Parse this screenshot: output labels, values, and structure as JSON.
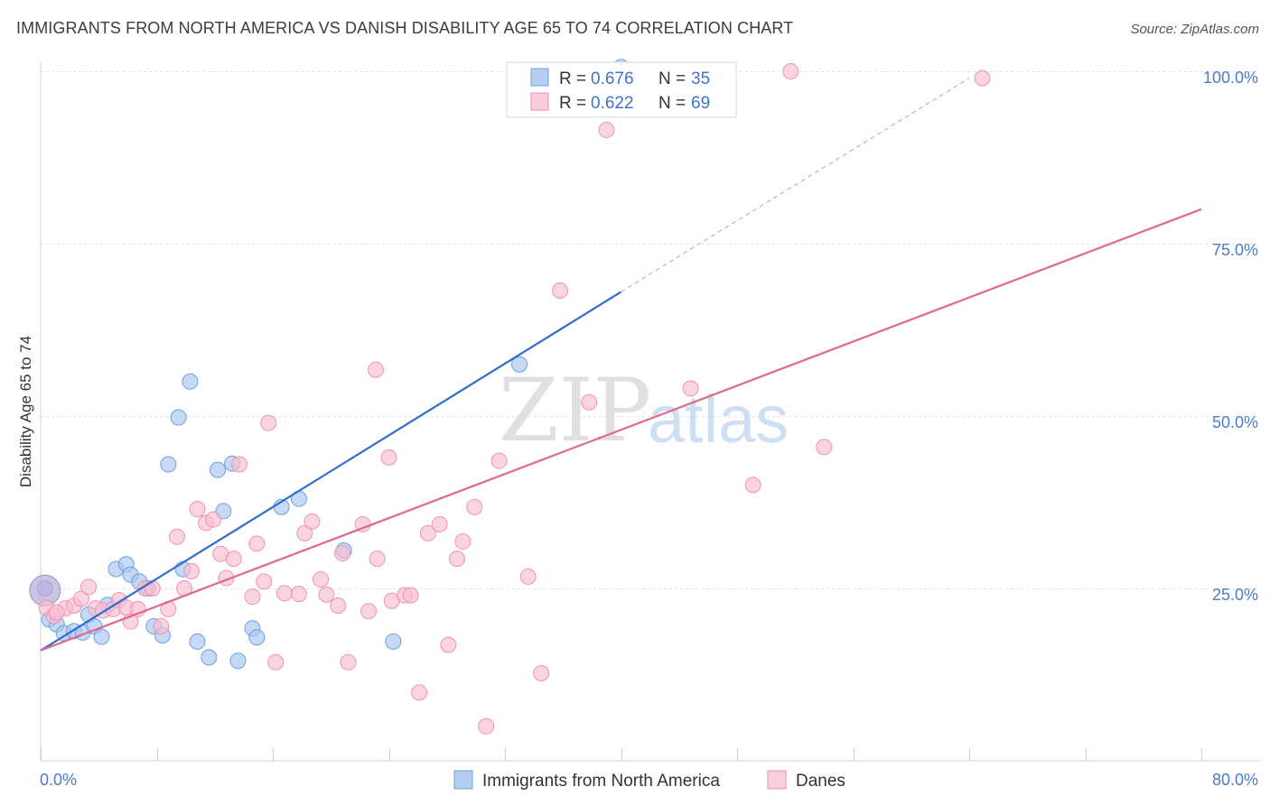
{
  "title": "IMMIGRANTS FROM NORTH AMERICA VS DANISH DISABILITY AGE 65 TO 74 CORRELATION CHART",
  "source": "Source: ZipAtlas.com",
  "watermark": {
    "zip": "ZIP",
    "atlas": "atlas"
  },
  "legend_top": [
    {
      "r_label": "R =",
      "r_value": "0.676",
      "n_label": "N =",
      "n_value": "35"
    },
    {
      "r_label": "R =",
      "r_value": "0.622",
      "n_label": "N =",
      "n_value": "69"
    }
  ],
  "chart_data": {
    "type": "scatter",
    "title": "IMMIGRANTS FROM NORTH AMERICA VS DANISH DISABILITY AGE 65 TO 74 CORRELATION CHART",
    "xlabel": "",
    "ylabel": "Disability Age 65 to 74",
    "xlim": [
      0,
      80
    ],
    "ylim": [
      0,
      100
    ],
    "x_tick_labels": [
      "0.0%",
      "80.0%"
    ],
    "y_tick_labels": [
      "25.0%",
      "50.0%",
      "75.0%",
      "100.0%"
    ],
    "y_ticks": [
      25,
      50,
      75,
      100
    ],
    "grid": true,
    "legend_position": "top-center",
    "series": [
      {
        "name": "Immigrants from North America",
        "color": "#a9c6ef",
        "stroke": "#6f9fe0",
        "line_color": "#2f6fcc",
        "trend": {
          "x0": 0,
          "y0": 16,
          "x1": 40,
          "y1": 68,
          "dash_x1": 64,
          "dash_y1": 99
        },
        "points": [
          [
            0.3,
            25.0
          ],
          [
            0.6,
            20.5
          ],
          [
            1.1,
            19.8
          ],
          [
            1.6,
            18.5
          ],
          [
            2.3,
            18.8
          ],
          [
            2.9,
            18.6
          ],
          [
            3.3,
            21.2
          ],
          [
            3.7,
            19.5
          ],
          [
            4.2,
            18.0
          ],
          [
            4.6,
            22.6
          ],
          [
            5.2,
            27.8
          ],
          [
            5.9,
            28.5
          ],
          [
            6.2,
            27.0
          ],
          [
            6.8,
            26.0
          ],
          [
            7.4,
            25.0
          ],
          [
            7.8,
            19.5
          ],
          [
            8.4,
            18.2
          ],
          [
            8.8,
            43.0
          ],
          [
            9.5,
            49.8
          ],
          [
            9.8,
            27.8
          ],
          [
            10.3,
            55.0
          ],
          [
            10.8,
            17.3
          ],
          [
            11.6,
            15.0
          ],
          [
            12.2,
            42.2
          ],
          [
            12.6,
            36.2
          ],
          [
            13.2,
            43.1
          ],
          [
            13.6,
            14.5
          ],
          [
            14.6,
            19.2
          ],
          [
            14.9,
            17.9
          ],
          [
            16.6,
            36.8
          ],
          [
            17.8,
            38.0
          ],
          [
            20.9,
            30.5
          ],
          [
            24.3,
            17.3
          ],
          [
            33.0,
            57.5
          ],
          [
            40.0,
            100.6
          ]
        ]
      },
      {
        "name": "Danes",
        "color": "#f7bfd1",
        "stroke": "#ef93b1",
        "line_color": "#e0688f",
        "trend": {
          "x0": 0,
          "y0": 16,
          "x1": 80,
          "y1": 80
        },
        "points": [
          [
            0.4,
            22.2
          ],
          [
            0.9,
            21.0
          ],
          [
            1.7,
            22.1
          ],
          [
            2.3,
            22.5
          ],
          [
            2.8,
            23.5
          ],
          [
            3.3,
            25.2
          ],
          [
            3.8,
            22.1
          ],
          [
            4.3,
            21.8
          ],
          [
            5.0,
            22.0
          ],
          [
            5.4,
            23.3
          ],
          [
            5.9,
            22.2
          ],
          [
            6.2,
            20.2
          ],
          [
            6.7,
            22.0
          ],
          [
            7.2,
            25.0
          ],
          [
            7.7,
            25.0
          ],
          [
            8.3,
            19.5
          ],
          [
            8.8,
            22.0
          ],
          [
            9.4,
            32.5
          ],
          [
            9.9,
            25.0
          ],
          [
            10.4,
            27.5
          ],
          [
            10.8,
            36.5
          ],
          [
            11.4,
            34.5
          ],
          [
            11.9,
            35.0
          ],
          [
            12.4,
            30.0
          ],
          [
            12.8,
            26.5
          ],
          [
            13.3,
            29.3
          ],
          [
            13.7,
            43.0
          ],
          [
            14.6,
            23.8
          ],
          [
            14.9,
            31.5
          ],
          [
            15.4,
            26.0
          ],
          [
            15.7,
            49.0
          ],
          [
            16.2,
            14.3
          ],
          [
            16.8,
            24.3
          ],
          [
            17.8,
            24.2
          ],
          [
            18.2,
            33.0
          ],
          [
            18.7,
            34.7
          ],
          [
            19.3,
            26.3
          ],
          [
            19.7,
            24.1
          ],
          [
            20.5,
            22.5
          ],
          [
            20.8,
            30.1
          ],
          [
            21.2,
            14.3
          ],
          [
            22.2,
            34.3
          ],
          [
            22.6,
            21.7
          ],
          [
            23.2,
            29.3
          ],
          [
            23.1,
            56.7
          ],
          [
            24.0,
            44.0
          ],
          [
            24.2,
            23.2
          ],
          [
            25.1,
            24.0
          ],
          [
            25.5,
            24.0
          ],
          [
            26.1,
            9.9
          ],
          [
            26.7,
            33.0
          ],
          [
            27.5,
            34.3
          ],
          [
            28.1,
            16.8
          ],
          [
            28.7,
            29.3
          ],
          [
            29.1,
            31.8
          ],
          [
            29.9,
            36.8
          ],
          [
            30.7,
            5.0
          ],
          [
            31.6,
            43.5
          ],
          [
            33.6,
            26.7
          ],
          [
            34.5,
            12.7
          ],
          [
            35.8,
            68.2
          ],
          [
            37.8,
            52.0
          ],
          [
            39.0,
            91.5
          ],
          [
            44.8,
            54.0
          ],
          [
            49.1,
            40.0
          ],
          [
            51.7,
            100.0
          ],
          [
            54.0,
            45.5
          ],
          [
            64.9,
            99.0
          ],
          [
            1.1,
            21.5
          ]
        ]
      }
    ]
  }
}
